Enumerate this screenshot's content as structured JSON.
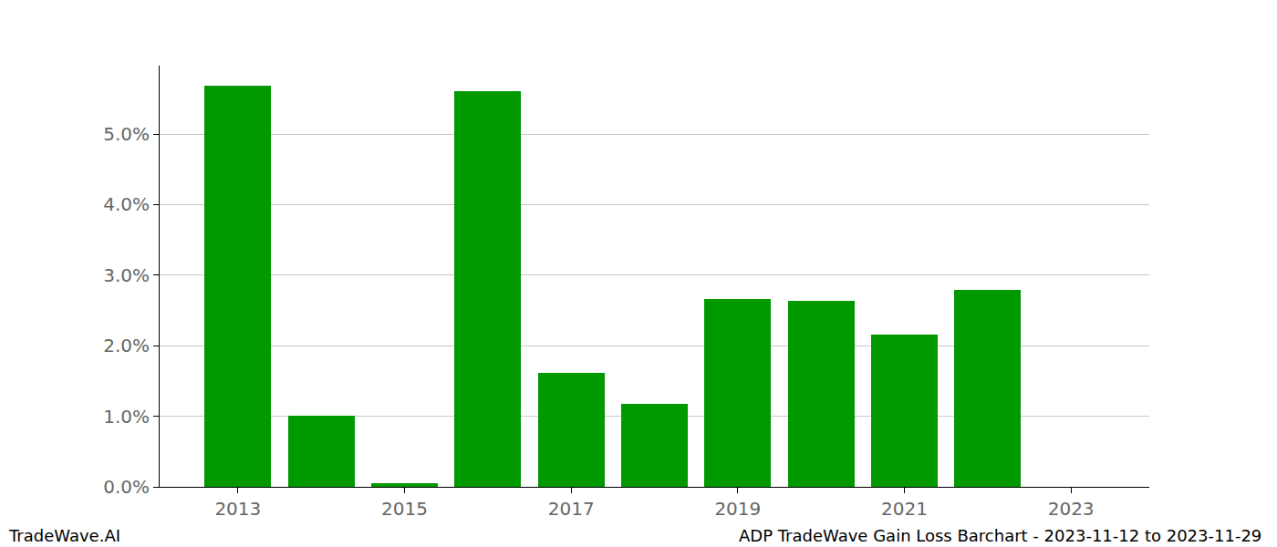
{
  "chart_data": {
    "type": "bar",
    "x": [
      2013,
      2014,
      2015,
      2016,
      2017,
      2018,
      2019,
      2020,
      2021,
      2022,
      2023
    ],
    "values": [
      5.68,
      1.01,
      0.05,
      5.61,
      1.61,
      1.18,
      2.66,
      2.64,
      2.16,
      2.79,
      0
    ],
    "color": "#009900",
    "xlim": [
      2012.06,
      2023.94
    ],
    "xticks": [
      2013,
      2015,
      2017,
      2019,
      2021,
      2023
    ],
    "ylim": [
      0,
      5.97
    ],
    "yticks": [
      {
        "value": 0,
        "label": "0.0%"
      },
      {
        "value": 1,
        "label": "1.0%"
      },
      {
        "value": 2,
        "label": "2.0%"
      },
      {
        "value": 3,
        "label": "3.0%"
      },
      {
        "value": 4,
        "label": "4.0%"
      },
      {
        "value": 5,
        "label": "5.0%"
      }
    ],
    "grid": true,
    "annotations": [
      {
        "text": "TradeWave.AI"
      },
      {
        "text": "ADP TradeWave Gain Loss Barchart - 2023-11-12 to 2023-11-29"
      }
    ]
  }
}
